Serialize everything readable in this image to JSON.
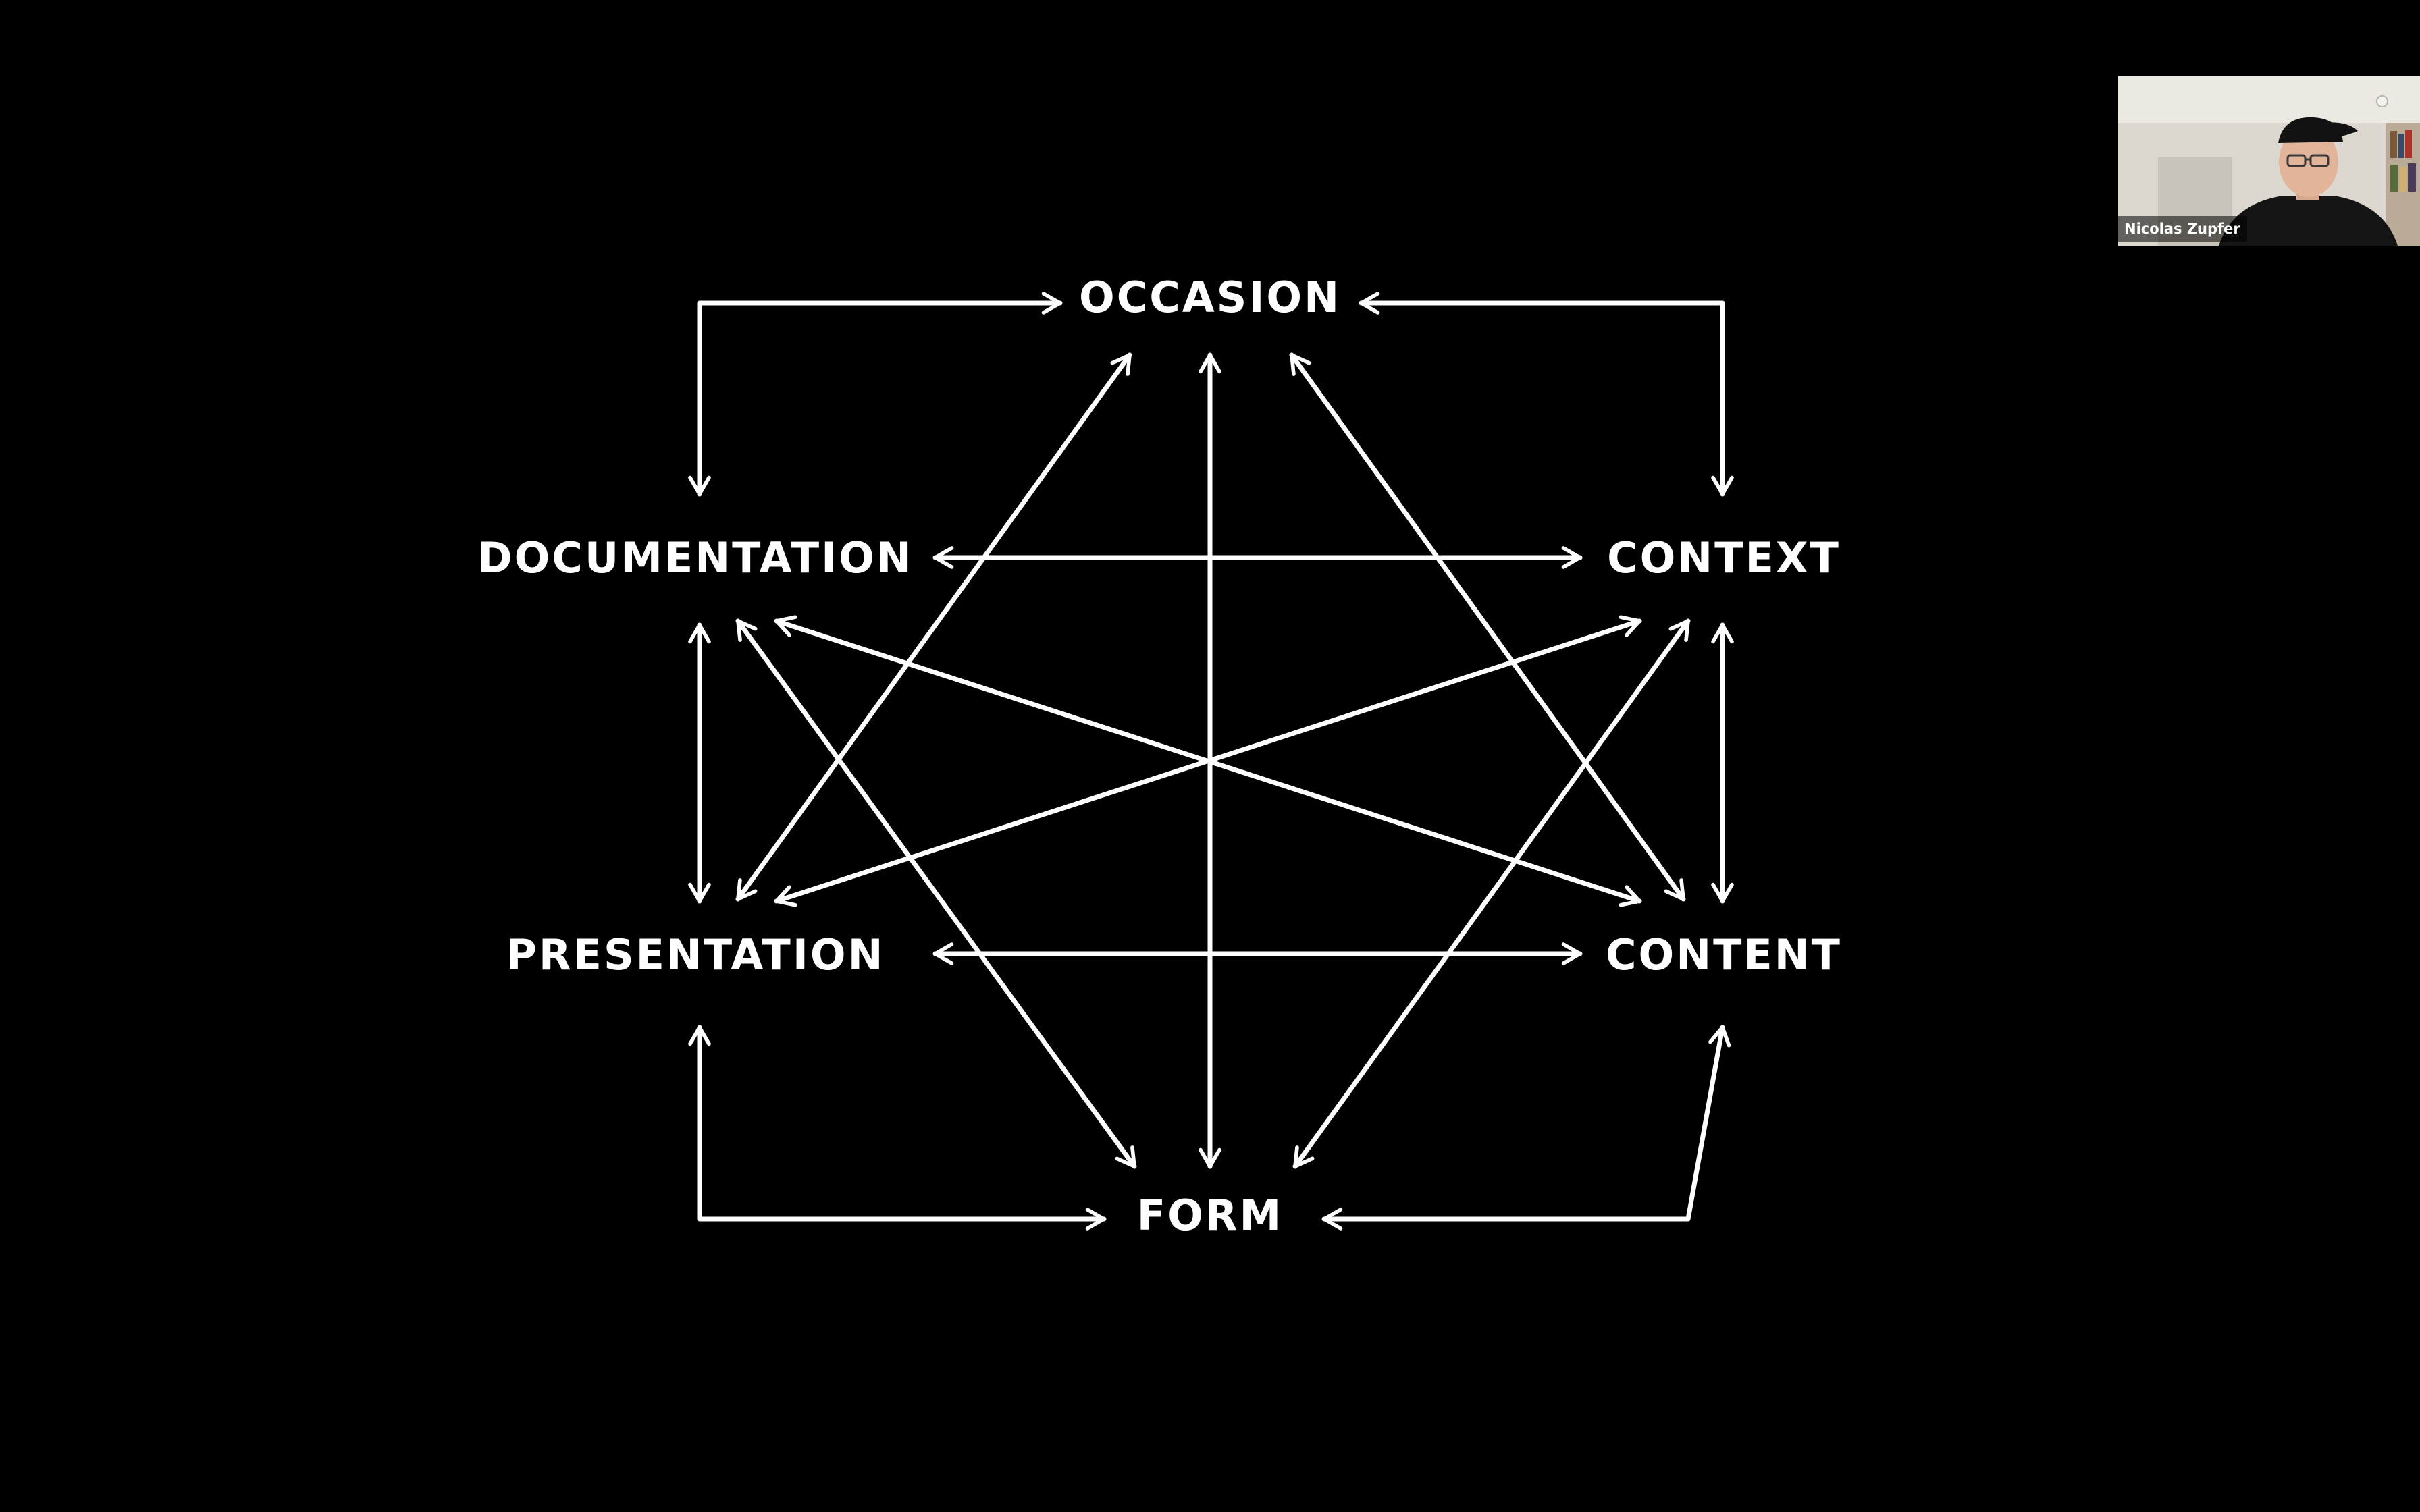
{
  "diagram": {
    "nodes": {
      "occasion": "OCCASION",
      "documentation": "DOCUMENTATION",
      "context": "CONTEXT",
      "presentation": "PRESENTATION",
      "content": "CONTENT",
      "form": "FORM"
    }
  },
  "video": {
    "participant_name": "Nicolas Zupfer"
  },
  "colors": {
    "background": "#000000",
    "foreground": "#ffffff"
  }
}
